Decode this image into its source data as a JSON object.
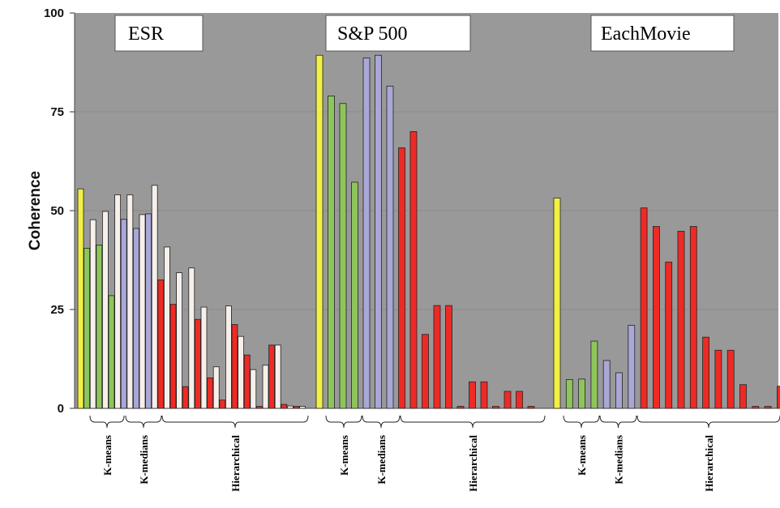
{
  "chart_data": {
    "type": "bar",
    "ylabel": "Coherence",
    "ylim": [
      0,
      100
    ],
    "yticks": [
      "0",
      "25",
      "50",
      "75",
      "100"
    ],
    "grid": true,
    "background": "#999999",
    "colors": {
      "yellow": "#f2ef45",
      "white": "#f6efea",
      "green": "#8dc55a",
      "purple": "#a8a7d6",
      "red": "#ee2a25"
    },
    "datasets": [
      {
        "title": "ESR",
        "groups": [
          "K-means",
          "K-medians",
          "Hierarchical"
        ],
        "bars": [
          {
            "value": 55.5,
            "color": "yellow"
          },
          {
            "value": 40.5,
            "color": "green"
          },
          {
            "value": 47.7,
            "color": "white"
          },
          {
            "value": 41.3,
            "color": "green"
          },
          {
            "value": 49.8,
            "color": "white"
          },
          {
            "value": 28.5,
            "color": "green"
          },
          {
            "value": 54.0,
            "color": "white"
          },
          {
            "value": 47.8,
            "color": "purple"
          },
          {
            "value": 54.0,
            "color": "white"
          },
          {
            "value": 45.5,
            "color": "purple"
          },
          {
            "value": 49.0,
            "color": "white"
          },
          {
            "value": 49.2,
            "color": "purple"
          },
          {
            "value": 56.4,
            "color": "white"
          },
          {
            "value": 32.5,
            "color": "red"
          },
          {
            "value": 40.8,
            "color": "white"
          },
          {
            "value": 26.3,
            "color": "red"
          },
          {
            "value": 34.3,
            "color": "white"
          },
          {
            "value": 5.5,
            "color": "red"
          },
          {
            "value": 35.5,
            "color": "white"
          },
          {
            "value": 22.5,
            "color": "red"
          },
          {
            "value": 25.6,
            "color": "white"
          },
          {
            "value": 7.7,
            "color": "red"
          },
          {
            "value": 10.5,
            "color": "white"
          },
          {
            "value": 2.1,
            "color": "red"
          },
          {
            "value": 25.9,
            "color": "white"
          },
          {
            "value": 21.2,
            "color": "red"
          },
          {
            "value": 18.2,
            "color": "white"
          },
          {
            "value": 13.5,
            "color": "red"
          },
          {
            "value": 9.8,
            "color": "white"
          },
          {
            "value": 0.5,
            "color": "red"
          },
          {
            "value": 10.9,
            "color": "white"
          },
          {
            "value": 16.0,
            "color": "red"
          },
          {
            "value": 16.0,
            "color": "white"
          },
          {
            "value": 1.0,
            "color": "red"
          },
          {
            "value": 0.6,
            "color": "white"
          },
          {
            "value": 0.5,
            "color": "red"
          },
          {
            "value": 0.5,
            "color": "white"
          }
        ]
      },
      {
        "title": "S&P 500",
        "groups": [
          "K-means",
          "K-medians",
          "Hierarchical"
        ],
        "bars": [
          {
            "value": 89.3,
            "color": "yellow"
          },
          {
            "value": 79.0,
            "color": "green"
          },
          {
            "value": 77.1,
            "color": "green"
          },
          {
            "value": 57.2,
            "color": "green"
          },
          {
            "value": 88.6,
            "color": "purple"
          },
          {
            "value": 89.3,
            "color": "purple"
          },
          {
            "value": 81.5,
            "color": "purple"
          },
          {
            "value": 65.9,
            "color": "red"
          },
          {
            "value": 70.0,
            "color": "red"
          },
          {
            "value": 18.7,
            "color": "red"
          },
          {
            "value": 26.0,
            "color": "red"
          },
          {
            "value": 26.0,
            "color": "red"
          },
          {
            "value": 0.5,
            "color": "red"
          },
          {
            "value": 6.7,
            "color": "red"
          },
          {
            "value": 6.7,
            "color": "red"
          },
          {
            "value": 0.5,
            "color": "red"
          },
          {
            "value": 4.3,
            "color": "red"
          },
          {
            "value": 4.3,
            "color": "red"
          },
          {
            "value": 0.5,
            "color": "red"
          }
        ]
      },
      {
        "title": "EachMovie",
        "groups": [
          "K-means",
          "K-medians",
          "Hierarchical"
        ],
        "bars": [
          {
            "value": 53.2,
            "color": "yellow"
          },
          {
            "value": 7.3,
            "color": "green"
          },
          {
            "value": 7.4,
            "color": "green"
          },
          {
            "value": 17.0,
            "color": "green"
          },
          {
            "value": 12.1,
            "color": "purple"
          },
          {
            "value": 9.0,
            "color": "purple"
          },
          {
            "value": 21.0,
            "color": "purple"
          },
          {
            "value": 50.7,
            "color": "red"
          },
          {
            "value": 46.0,
            "color": "red"
          },
          {
            "value": 37.0,
            "color": "red"
          },
          {
            "value": 44.8,
            "color": "red"
          },
          {
            "value": 46.0,
            "color": "red"
          },
          {
            "value": 18.0,
            "color": "red"
          },
          {
            "value": 14.7,
            "color": "red"
          },
          {
            "value": 14.7,
            "color": "red"
          },
          {
            "value": 6.0,
            "color": "red"
          },
          {
            "value": 0.5,
            "color": "red"
          },
          {
            "value": 0.5,
            "color": "red"
          },
          {
            "value": 5.6,
            "color": "red"
          }
        ]
      }
    ]
  }
}
